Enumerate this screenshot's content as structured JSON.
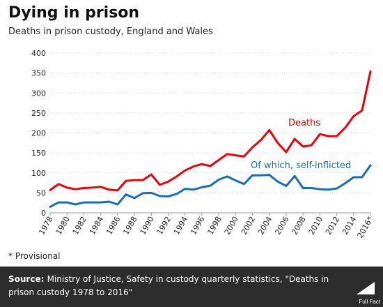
{
  "chart_data": {
    "type": "line",
    "title": "Dying in prison",
    "subtitle": "Deaths in prison custody, England and Wales",
    "xlabel": "",
    "ylabel": "",
    "ylim": [
      0,
      400
    ],
    "yticks": [
      0,
      50,
      100,
      150,
      200,
      250,
      300,
      350,
      400
    ],
    "grid": true,
    "x": [
      "1978",
      "1979",
      "1980",
      "1981",
      "1982",
      "1983",
      "1984",
      "1985",
      "1986",
      "1987",
      "1988",
      "1989",
      "1990",
      "1991",
      "1992",
      "1993",
      "1994",
      "1995",
      "1996",
      "1997",
      "1998",
      "1999",
      "2000",
      "2001",
      "2002",
      "2003",
      "2004",
      "2005",
      "2006",
      "2007",
      "2008",
      "2009",
      "2010",
      "2011",
      "2012",
      "2013",
      "2014",
      "2015",
      "2016"
    ],
    "x_tick_labels": [
      "1978",
      "1980",
      "1982",
      "1984",
      "1986",
      "1988",
      "1990",
      "1992",
      "1994",
      "1996",
      "1998",
      "2000",
      "2002",
      "2004",
      "2006",
      "2008",
      "2010",
      "2012",
      "2014",
      "2016*"
    ],
    "series": [
      {
        "name": "Deaths",
        "color": "#e8000b",
        "values": [
          57,
          72,
          63,
          59,
          62,
          63,
          65,
          58,
          56,
          80,
          82,
          82,
          96,
          70,
          78,
          91,
          106,
          116,
          122,
          117,
          132,
          147,
          144,
          141,
          164,
          182,
          207,
          175,
          152,
          185,
          166,
          169,
          197,
          192,
          192,
          213,
          242,
          256,
          354
        ]
      },
      {
        "name": "Of which, self-inflicted",
        "color": "#1a6db3",
        "values": [
          15,
          26,
          26,
          21,
          26,
          26,
          26,
          28,
          21,
          46,
          37,
          49,
          50,
          42,
          41,
          47,
          60,
          58,
          64,
          68,
          83,
          91,
          81,
          72,
          94,
          94,
          95,
          78,
          67,
          92,
          62,
          62,
          59,
          58,
          61,
          74,
          89,
          89,
          119
        ]
      }
    ]
  },
  "footnote": "* Provisional",
  "footer": {
    "source_label": "Source:",
    "source_text": "Ministry of Justice, Safety in custody quarterly statistics, \"Deaths in prison custody 1978 to 2016\"",
    "logo_text": "Full Fact"
  }
}
